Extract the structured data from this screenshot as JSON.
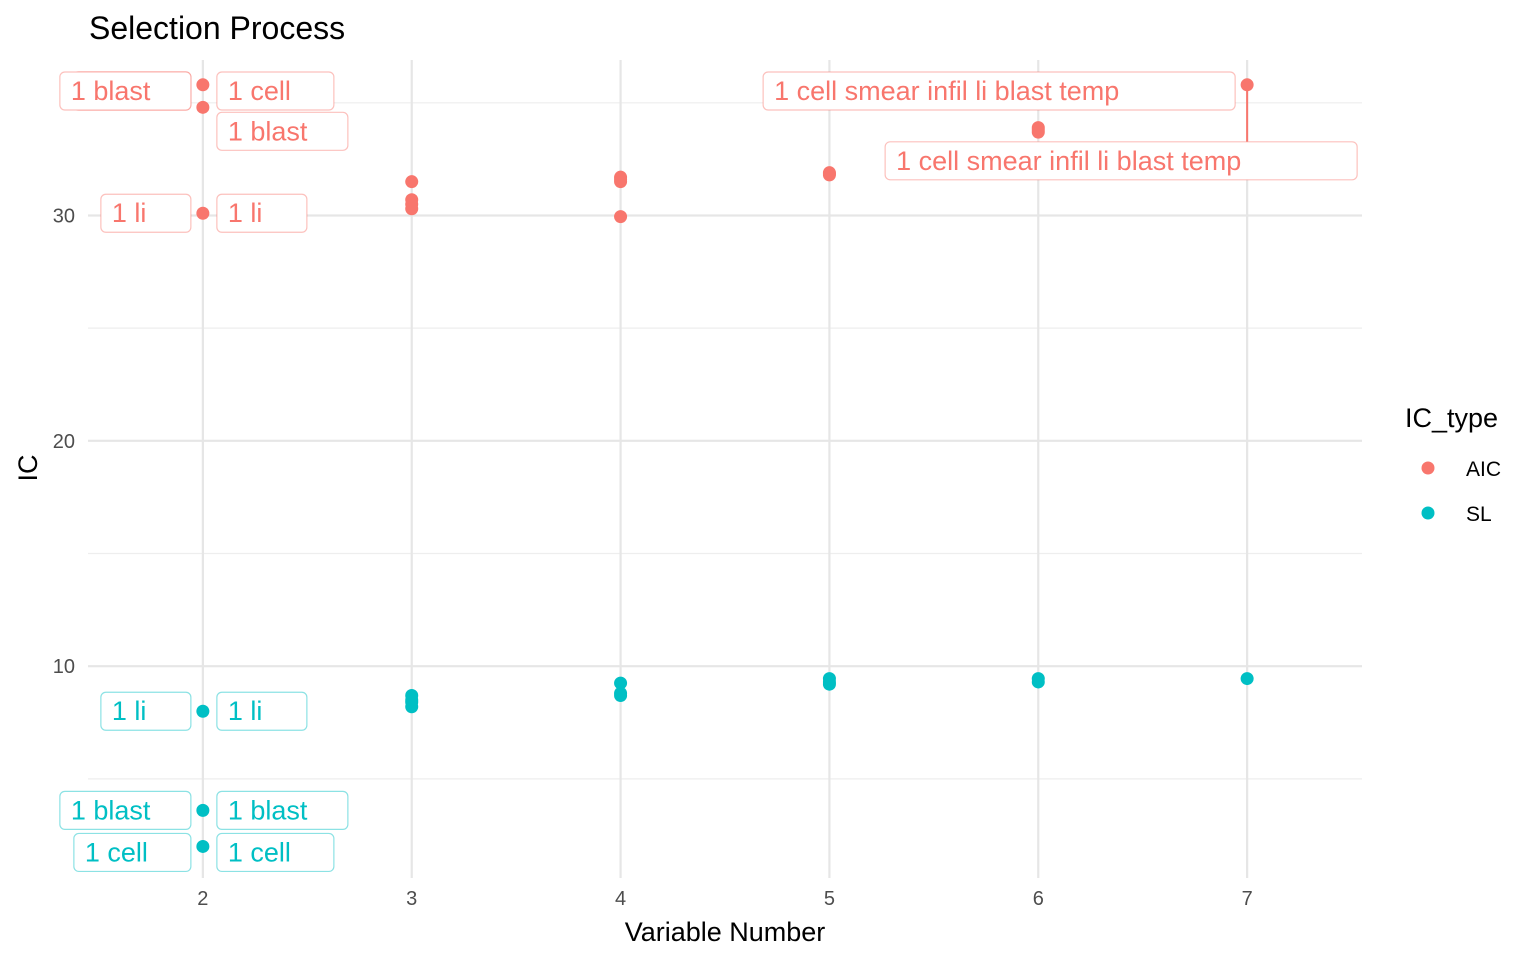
{
  "chart_data": {
    "type": "scatter",
    "title": "Selection Process",
    "xlabel": "Variable Number",
    "ylabel": "IC",
    "xlim": [
      1.45,
      7.55
    ],
    "ylim": [
      0.6,
      36.9
    ],
    "x_ticks": [
      2,
      3,
      4,
      5,
      6,
      7
    ],
    "y_ticks": [
      10,
      20,
      30
    ],
    "y_minor_ticks": [
      5,
      15,
      25,
      35
    ],
    "x_minor_ticks": [],
    "grid": true,
    "legend": {
      "title": "IC_type",
      "placement": "right",
      "entries": [
        "AIC",
        "SL"
      ]
    },
    "colors": {
      "AIC": "#F8766D",
      "SL": "#00BFC4"
    },
    "series": [
      {
        "name": "AIC",
        "x": [
          2,
          2,
          2,
          3,
          3,
          3,
          3,
          4,
          4,
          4,
          4,
          5,
          5,
          5,
          6,
          6,
          6,
          7
        ],
        "y": [
          35.8,
          34.8,
          30.1,
          31.5,
          30.7,
          30.5,
          30.3,
          31.7,
          31.5,
          31.6,
          29.95,
          31.9,
          31.8,
          31.85,
          33.9,
          33.7,
          33.8,
          35.8
        ]
      },
      {
        "name": "SL",
        "x": [
          2,
          2,
          2,
          3,
          3,
          3,
          3,
          4,
          4,
          4,
          5,
          5,
          5,
          6,
          6,
          7
        ],
        "y": [
          8.0,
          3.6,
          2.0,
          8.7,
          8.5,
          8.4,
          8.2,
          9.25,
          8.8,
          8.7,
          9.45,
          9.3,
          9.2,
          9.45,
          9.3,
          9.45
        ]
      }
    ],
    "annotations": [
      {
        "series": "AIC",
        "text": "1  cell",
        "x": 2,
        "y": 35.8,
        "side": "left"
      },
      {
        "series": "AIC",
        "text": "1  cell",
        "x": 2,
        "y": 35.8,
        "side": "right"
      },
      {
        "series": "AIC",
        "text": "1  blast",
        "x": 2,
        "y": 34.8,
        "side": "left"
      },
      {
        "series": "AIC",
        "text": "1  blast",
        "x": 2,
        "y": 34.8,
        "side": "right"
      },
      {
        "series": "AIC",
        "text": "1  li",
        "x": 2,
        "y": 30.1,
        "side": "left"
      },
      {
        "series": "AIC",
        "text": "1  li",
        "x": 2,
        "y": 30.1,
        "side": "right"
      },
      {
        "series": "AIC",
        "text": "1  cell smear infil li blast temp",
        "x": 7,
        "y": 35.8,
        "side": "left"
      },
      {
        "series": "AIC",
        "text": "1  cell smear infil li blast temp",
        "x": 7,
        "y": 35.8,
        "side": "below"
      },
      {
        "series": "SL",
        "text": "1  li",
        "x": 2,
        "y": 8.0,
        "side": "left"
      },
      {
        "series": "SL",
        "text": "1  li",
        "x": 2,
        "y": 8.0,
        "side": "right"
      },
      {
        "series": "SL",
        "text": "1  blast",
        "x": 2,
        "y": 3.6,
        "side": "left"
      },
      {
        "series": "SL",
        "text": "1  blast",
        "x": 2,
        "y": 3.6,
        "side": "right"
      },
      {
        "series": "SL",
        "text": "1  cell",
        "x": 2,
        "y": 2.0,
        "side": "left"
      },
      {
        "series": "SL",
        "text": "1  cell",
        "x": 2,
        "y": 2.0,
        "side": "right"
      }
    ]
  }
}
